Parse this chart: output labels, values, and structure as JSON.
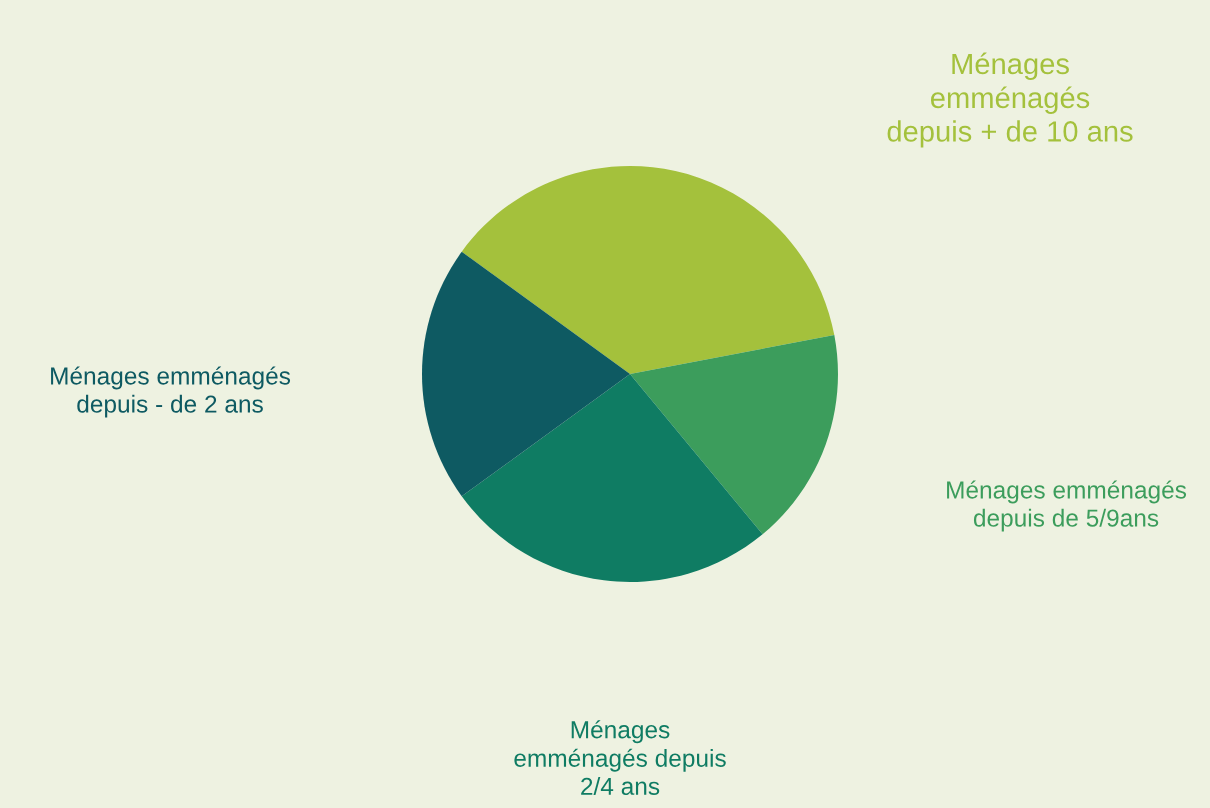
{
  "chart_data": {
    "type": "pie",
    "categories": [
      "Ménages\nemménagés\ndepuis + de 10 ans",
      "Ménages emménagés\ndepuis de 5/9ans",
      "Ménages\nemménagés depuis\n2/4 ans",
      "Ménages emménagés\ndepuis - de 2 ans"
    ],
    "values": [
      37,
      17,
      26,
      20
    ],
    "colors": [
      "#a4c13c",
      "#3c9d5c",
      "#0f7c63",
      "#0e5a62"
    ]
  }
}
